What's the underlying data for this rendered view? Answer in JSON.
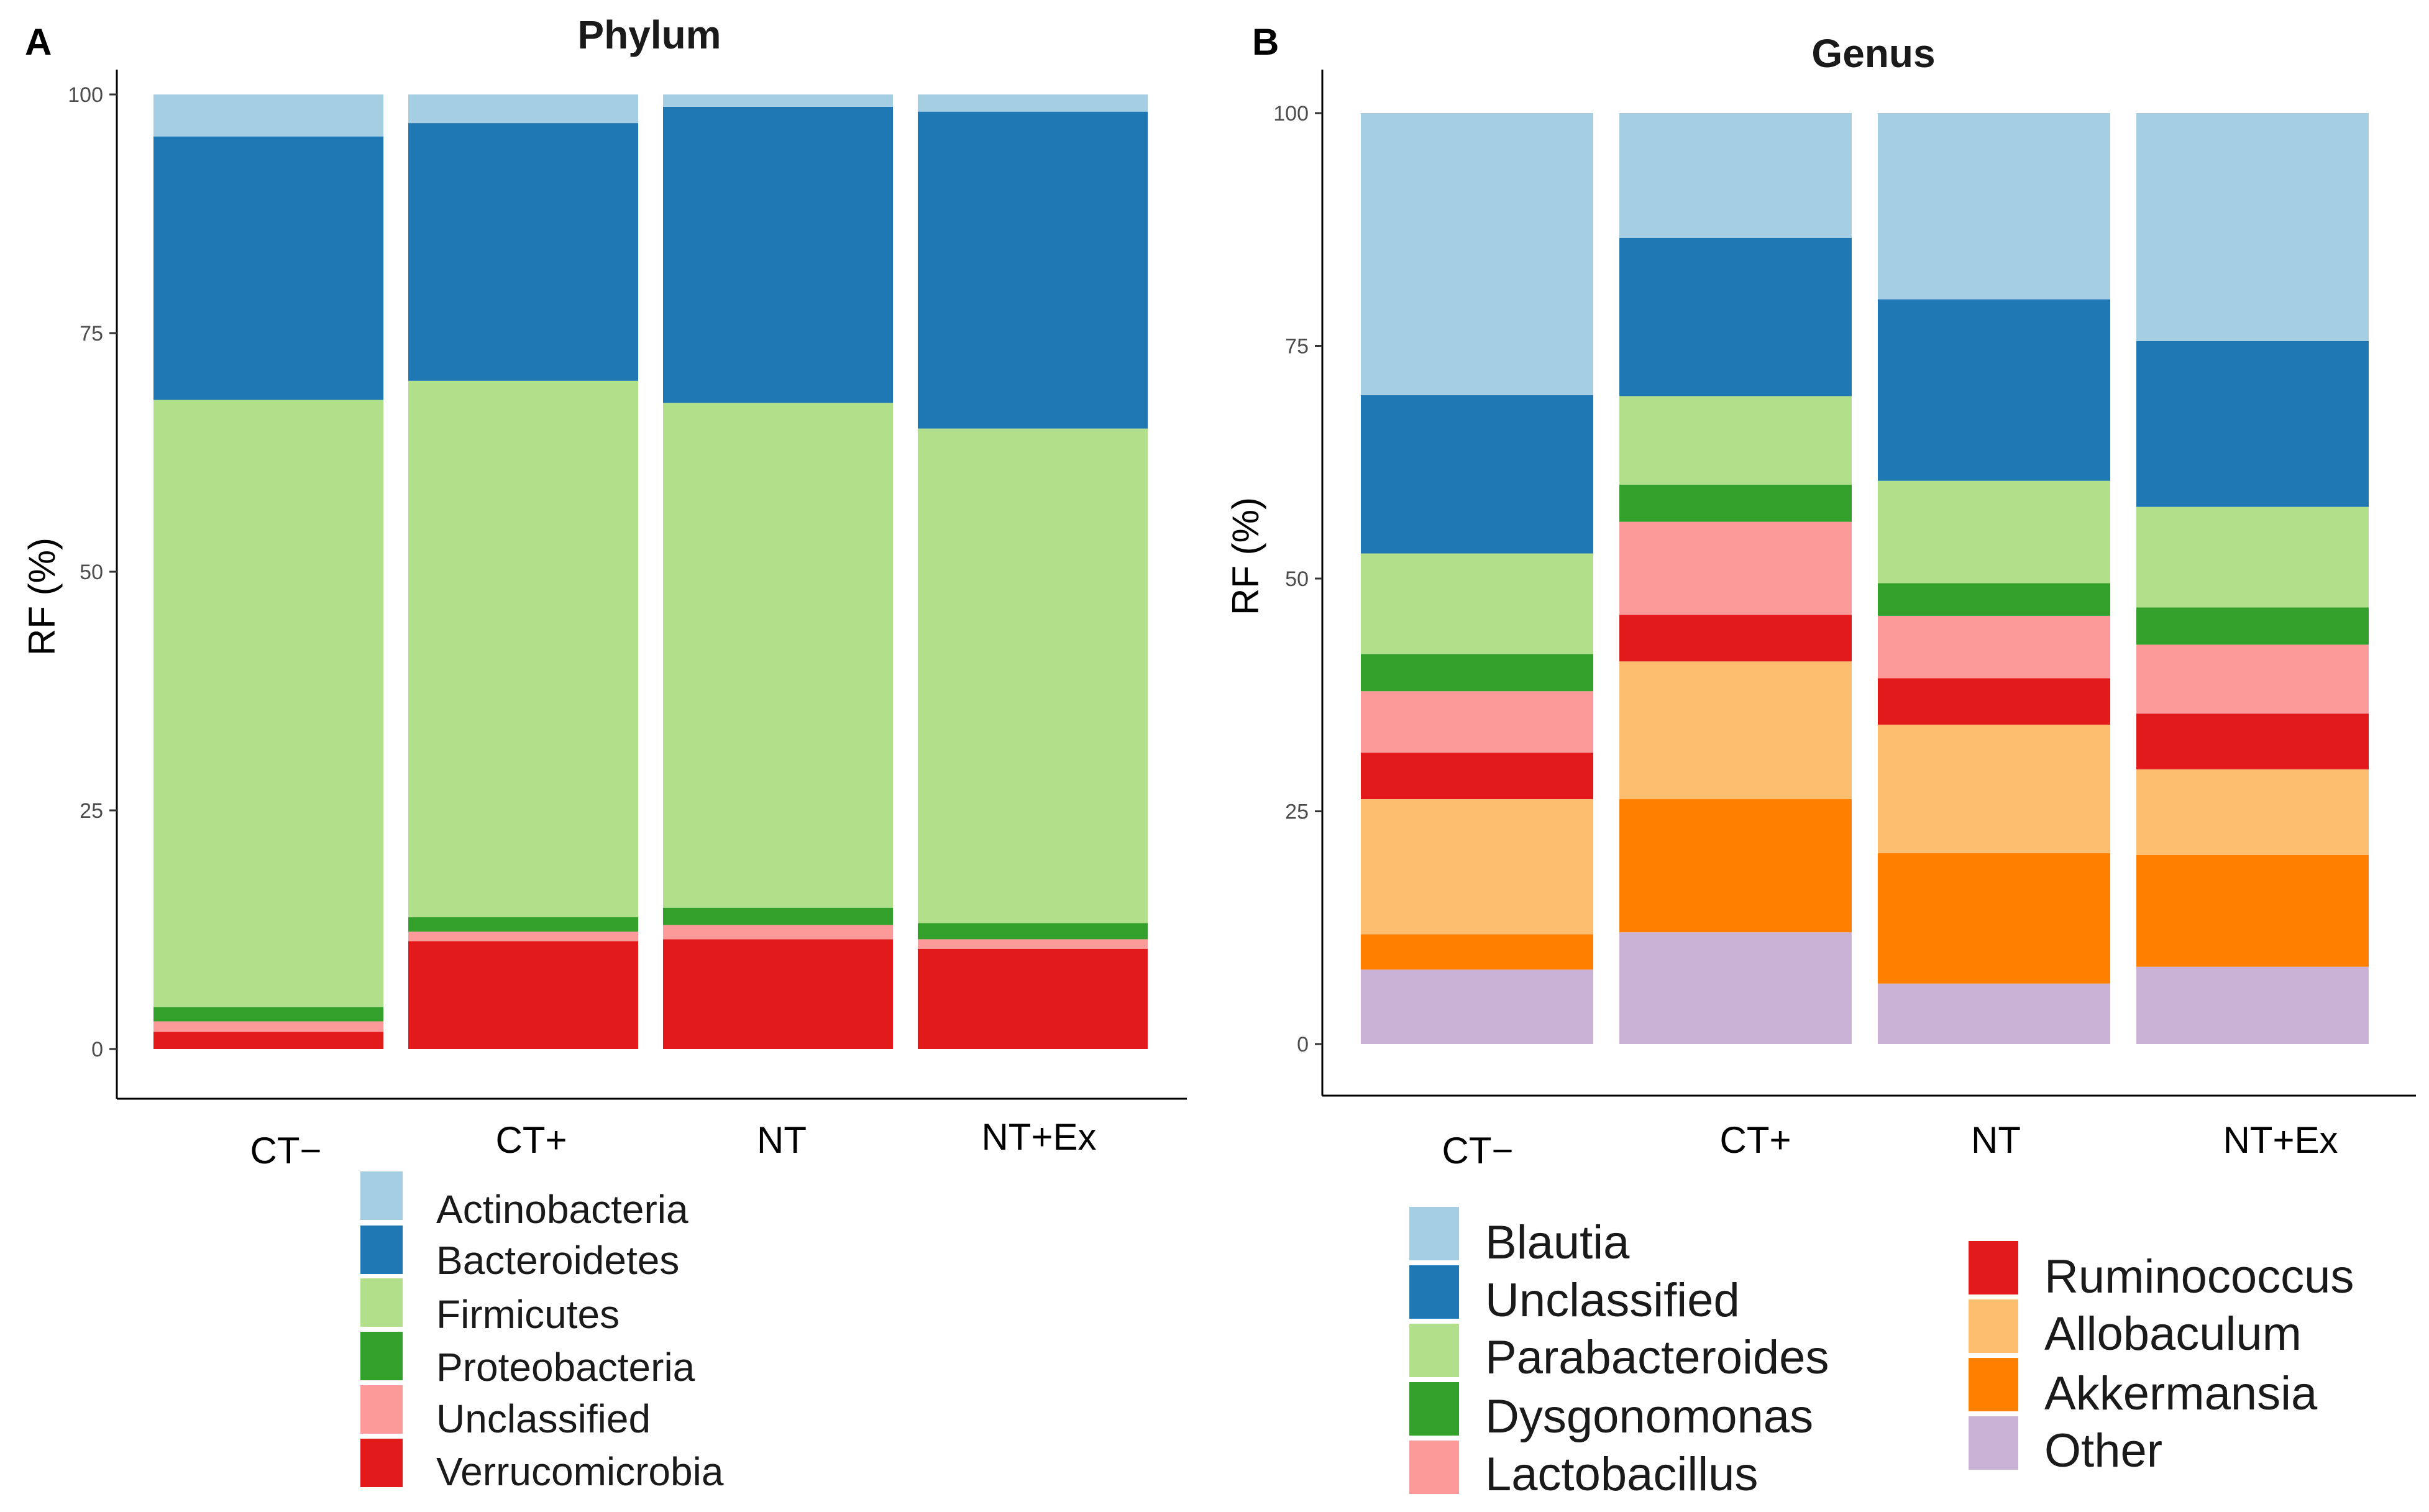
{
  "colors": {
    "light_blue": "#a6cee3",
    "dark_blue": "#1f78b4",
    "light_green": "#b2df8a",
    "dark_green": "#33a02c",
    "pink": "#fb9a99",
    "red": "#e31a1c",
    "light_orange": "#fdbf6f",
    "orange": "#ff7f00",
    "lavender": "#cab2d6"
  },
  "chart_data": [
    {
      "panel": "A",
      "type": "bar",
      "stacked": true,
      "title": "Phylum",
      "xlabel": "",
      "ylabel": "RF (%)",
      "ylim": [
        0,
        100
      ],
      "yticks": [
        "0",
        "25",
        "50",
        "75",
        "100"
      ],
      "categories": [
        "CT−",
        "CT+",
        "NT",
        "NT+Ex"
      ],
      "series": [
        {
          "name": "Verrucomicrobia",
          "color": "#e31a1c",
          "values": [
            1.8,
            11.3,
            11.5,
            10.5
          ]
        },
        {
          "name": "Unclassified",
          "color": "#fb9a99",
          "values": [
            1.1,
            1.0,
            1.5,
            1.0
          ]
        },
        {
          "name": "Proteobacteria",
          "color": "#33a02c",
          "values": [
            1.5,
            1.5,
            1.8,
            1.7
          ]
        },
        {
          "name": "Firmicutes",
          "color": "#b2df8a",
          "values": [
            63.6,
            56.2,
            52.9,
            51.8
          ]
        },
        {
          "name": "Bacteroidetes",
          "color": "#1f78b4",
          "values": [
            27.6,
            27.0,
            31.0,
            33.2
          ]
        },
        {
          "name": "Actinobacteria",
          "color": "#a6cee3",
          "values": [
            4.4,
            3.0,
            1.3,
            1.8
          ]
        }
      ],
      "legend": [
        "Actinobacteria",
        "Bacteroidetes",
        "Firmicutes",
        "Proteobacteria",
        "Unclassified",
        "Verrucomicrobia"
      ],
      "legend_position": "bottom"
    },
    {
      "panel": "B",
      "type": "bar",
      "stacked": true,
      "title": "Genus",
      "xlabel": "",
      "ylabel": "RF (%)",
      "ylim": [
        0,
        100
      ],
      "yticks": [
        "0",
        "25",
        "50",
        "75",
        "100"
      ],
      "categories": [
        "CT−",
        "CT+",
        "NT",
        "NT+Ex"
      ],
      "series": [
        {
          "name": "Other",
          "color": "#cab2d6",
          "values": [
            8.0,
            12.0,
            6.5,
            8.3
          ]
        },
        {
          "name": "Akkermansia",
          "color": "#ff7f00",
          "values": [
            3.8,
            14.3,
            14.0,
            12.0
          ]
        },
        {
          "name": "Allobaculum",
          "color": "#fdbf6f",
          "values": [
            14.5,
            14.8,
            13.8,
            9.2
          ]
        },
        {
          "name": "Ruminococcus",
          "color": "#e31a1c",
          "values": [
            5.0,
            5.0,
            5.0,
            6.0
          ]
        },
        {
          "name": "Lactobacillus",
          "color": "#fb9a99",
          "values": [
            6.6,
            10.0,
            6.7,
            7.4
          ]
        },
        {
          "name": "Dysgonomonas",
          "color": "#33a02c",
          "values": [
            4.0,
            4.0,
            3.5,
            4.0
          ]
        },
        {
          "name": "Parabacteroides",
          "color": "#b2df8a",
          "values": [
            10.8,
            9.5,
            11.0,
            10.8
          ]
        },
        {
          "name": "Unclassified",
          "color": "#1f78b4",
          "values": [
            17.0,
            17.0,
            19.5,
            17.8
          ]
        },
        {
          "name": "Blautia",
          "color": "#a6cee3",
          "values": [
            30.3,
            13.4,
            20.0,
            24.5
          ]
        }
      ],
      "legend": [
        "Blautia",
        "Unclassified",
        "Parabacteroides",
        "Dysgonomonas",
        "Lactobacillus",
        "Ruminococcus",
        "Allobaculum",
        "Akkermansia",
        "Other"
      ],
      "legend_position": "bottom"
    }
  ]
}
